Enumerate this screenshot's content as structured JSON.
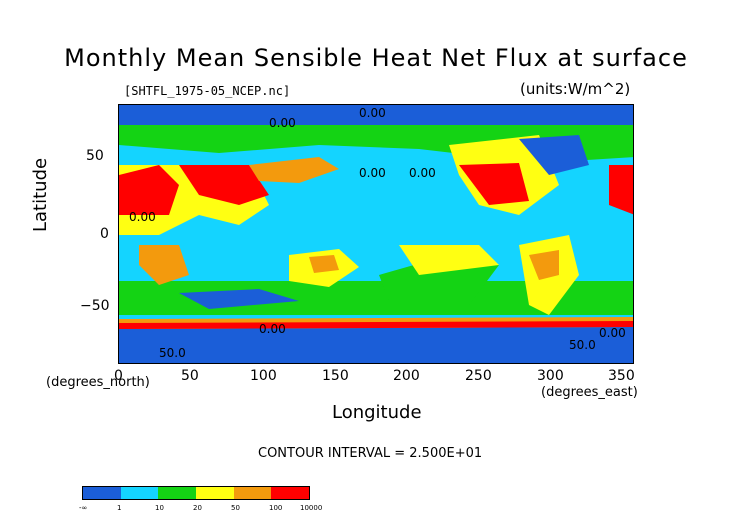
{
  "title": "Monthly Mean Sensible Heat Net Flux at surface",
  "source_file": "[SHTFL_1975-05_NCEP.nc]",
  "units": "(units:W/m^2)",
  "axes": {
    "ylabel": "Latitude",
    "xlabel": "Longitude",
    "y_unit": "(degrees_north)",
    "x_unit": "(degrees_east)",
    "yticks": [
      "50",
      "0",
      "−50"
    ],
    "xticks": [
      "0",
      "50",
      "100",
      "150",
      "200",
      "250",
      "300",
      "350"
    ]
  },
  "contour_interval": "CONTOUR INTERVAL = 2.500E+01",
  "colorbar": {
    "colors": [
      "#1b5ed8",
      "#14d4ff",
      "#14d314",
      "#ffff12",
      "#f39a0d",
      "#ff0000"
    ],
    "labels": [
      "-∞",
      "1",
      "10",
      "20",
      "50",
      "100",
      "10000"
    ]
  },
  "contour_labels": [
    "0.00",
    "0.00",
    "0.00",
    "0.00",
    "0.00",
    "0.00",
    "50.0",
    "50.0",
    "0.00"
  ],
  "chart_data": {
    "type": "heatmap",
    "title": "Monthly Mean Sensible Heat Net Flux at surface",
    "xlabel": "Longitude",
    "ylabel": "Latitude",
    "xlim": [
      0,
      360
    ],
    "ylim": [
      -90,
      90
    ],
    "color_levels": [
      -1000000000.0,
      1,
      10,
      20,
      50,
      100,
      10000
    ]
  }
}
